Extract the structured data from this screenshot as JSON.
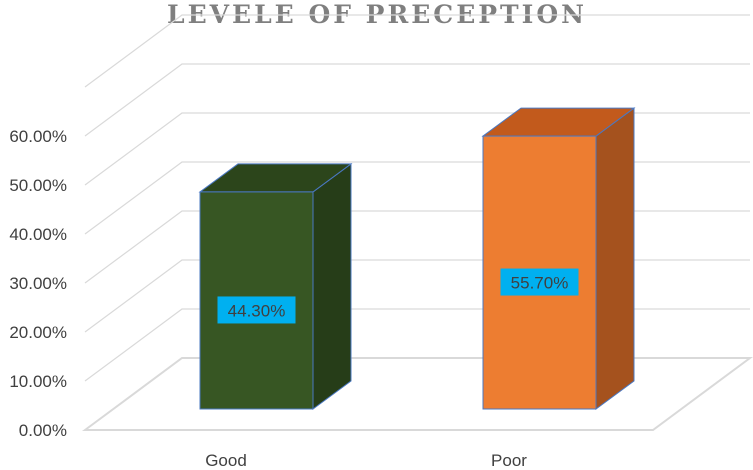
{
  "chart_data": {
    "type": "bar",
    "title": "LEVELE OF PRECEPTION",
    "categories": [
      "Good",
      "Poor"
    ],
    "values": [
      44.3,
      55.7
    ],
    "data_labels": [
      "44.30%",
      "55.70%"
    ],
    "y_ticks": [
      "0.00%",
      "10.00%",
      "20.00%",
      "30.00%",
      "40.00%",
      "50.00%",
      "60.00%"
    ],
    "ylim": [
      0,
      70
    ],
    "grid": true,
    "legend": "none",
    "style": "3d-column",
    "colors": {
      "Good": {
        "front": "#375623",
        "side": "#263d18",
        "top": "#2c451b"
      },
      "Poor": {
        "front": "#ed7d31",
        "side": "#a5521e",
        "top": "#c25a1c"
      },
      "label_box": "#00b0f0",
      "bar_edge": "#4a78c2",
      "grid": "#d9d9d9"
    }
  }
}
